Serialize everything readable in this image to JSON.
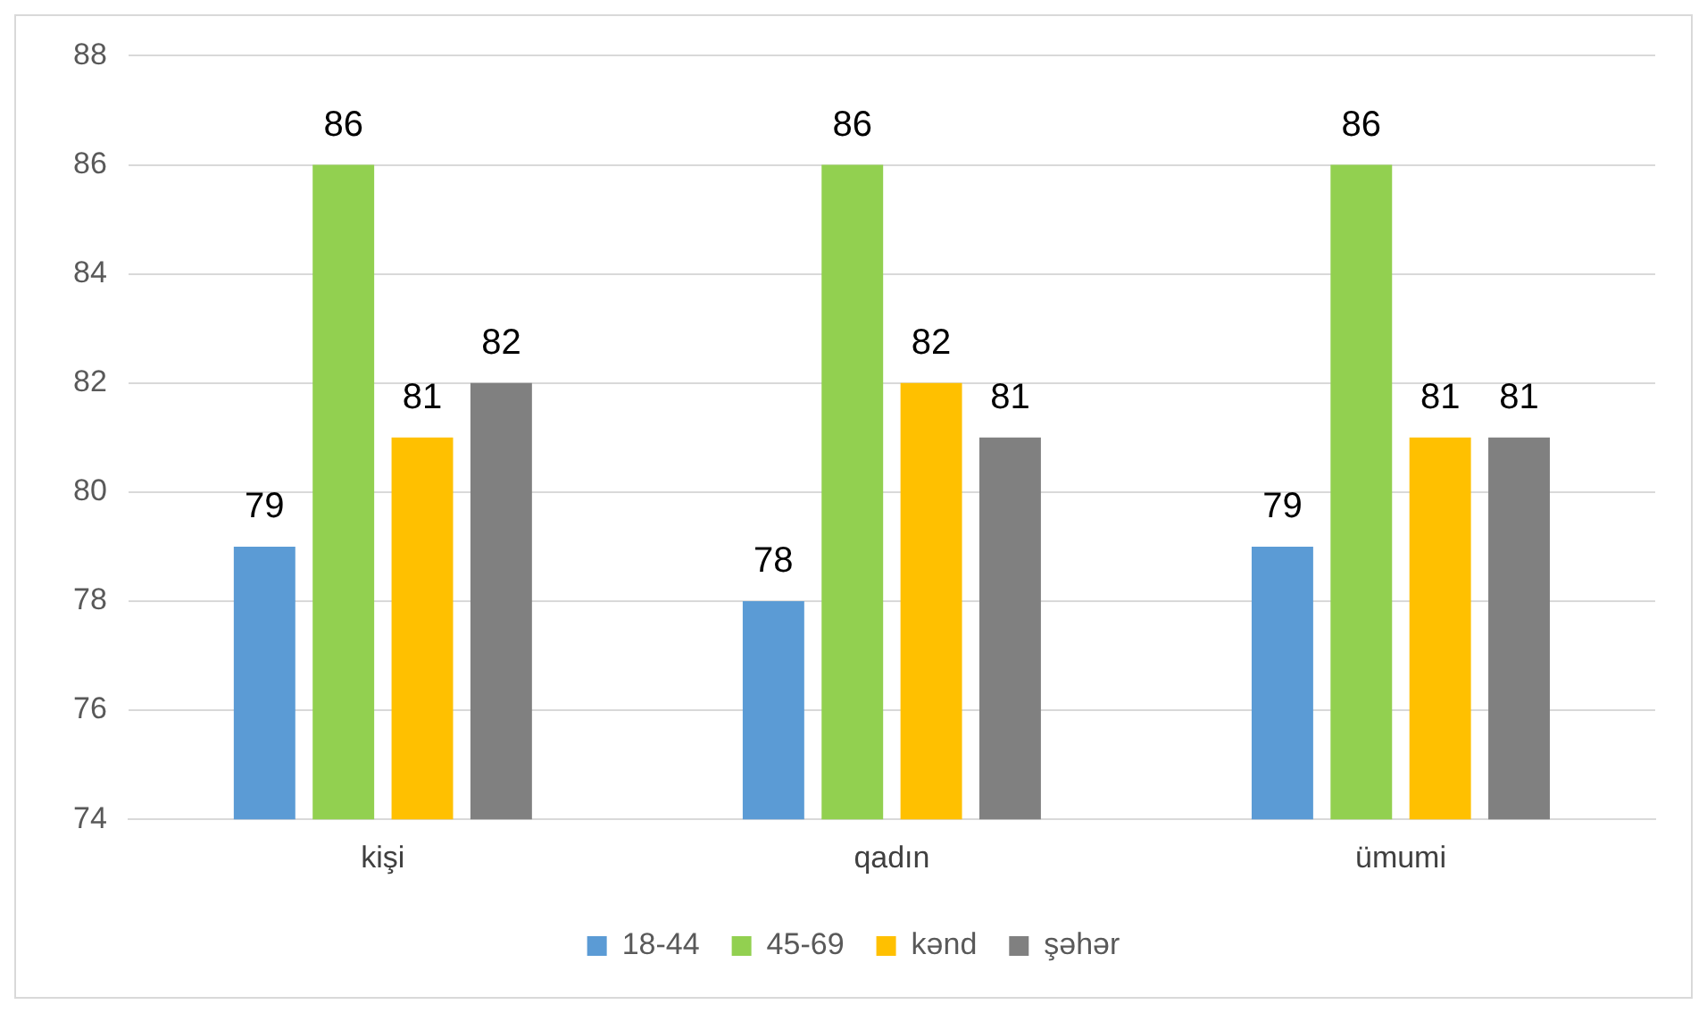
{
  "chart_data": {
    "type": "bar",
    "categories": [
      "kişi",
      "qadın",
      "ümumi"
    ],
    "series": [
      {
        "name": "18-44",
        "color": "#5b9bd5",
        "values": [
          79,
          78,
          79
        ]
      },
      {
        "name": "45-69",
        "color": "#92d050",
        "values": [
          86,
          86,
          86
        ]
      },
      {
        "name": "kənd",
        "color": "#ffc000",
        "values": [
          81,
          82,
          81
        ]
      },
      {
        "name": "şəhər",
        "color": "#808080",
        "values": [
          82,
          81,
          81
        ]
      }
    ],
    "ylim": [
      74,
      88
    ],
    "yticks": [
      74,
      76,
      78,
      80,
      82,
      84,
      86,
      88
    ],
    "grid": "y",
    "legend": "bottom",
    "data_labels": true
  }
}
